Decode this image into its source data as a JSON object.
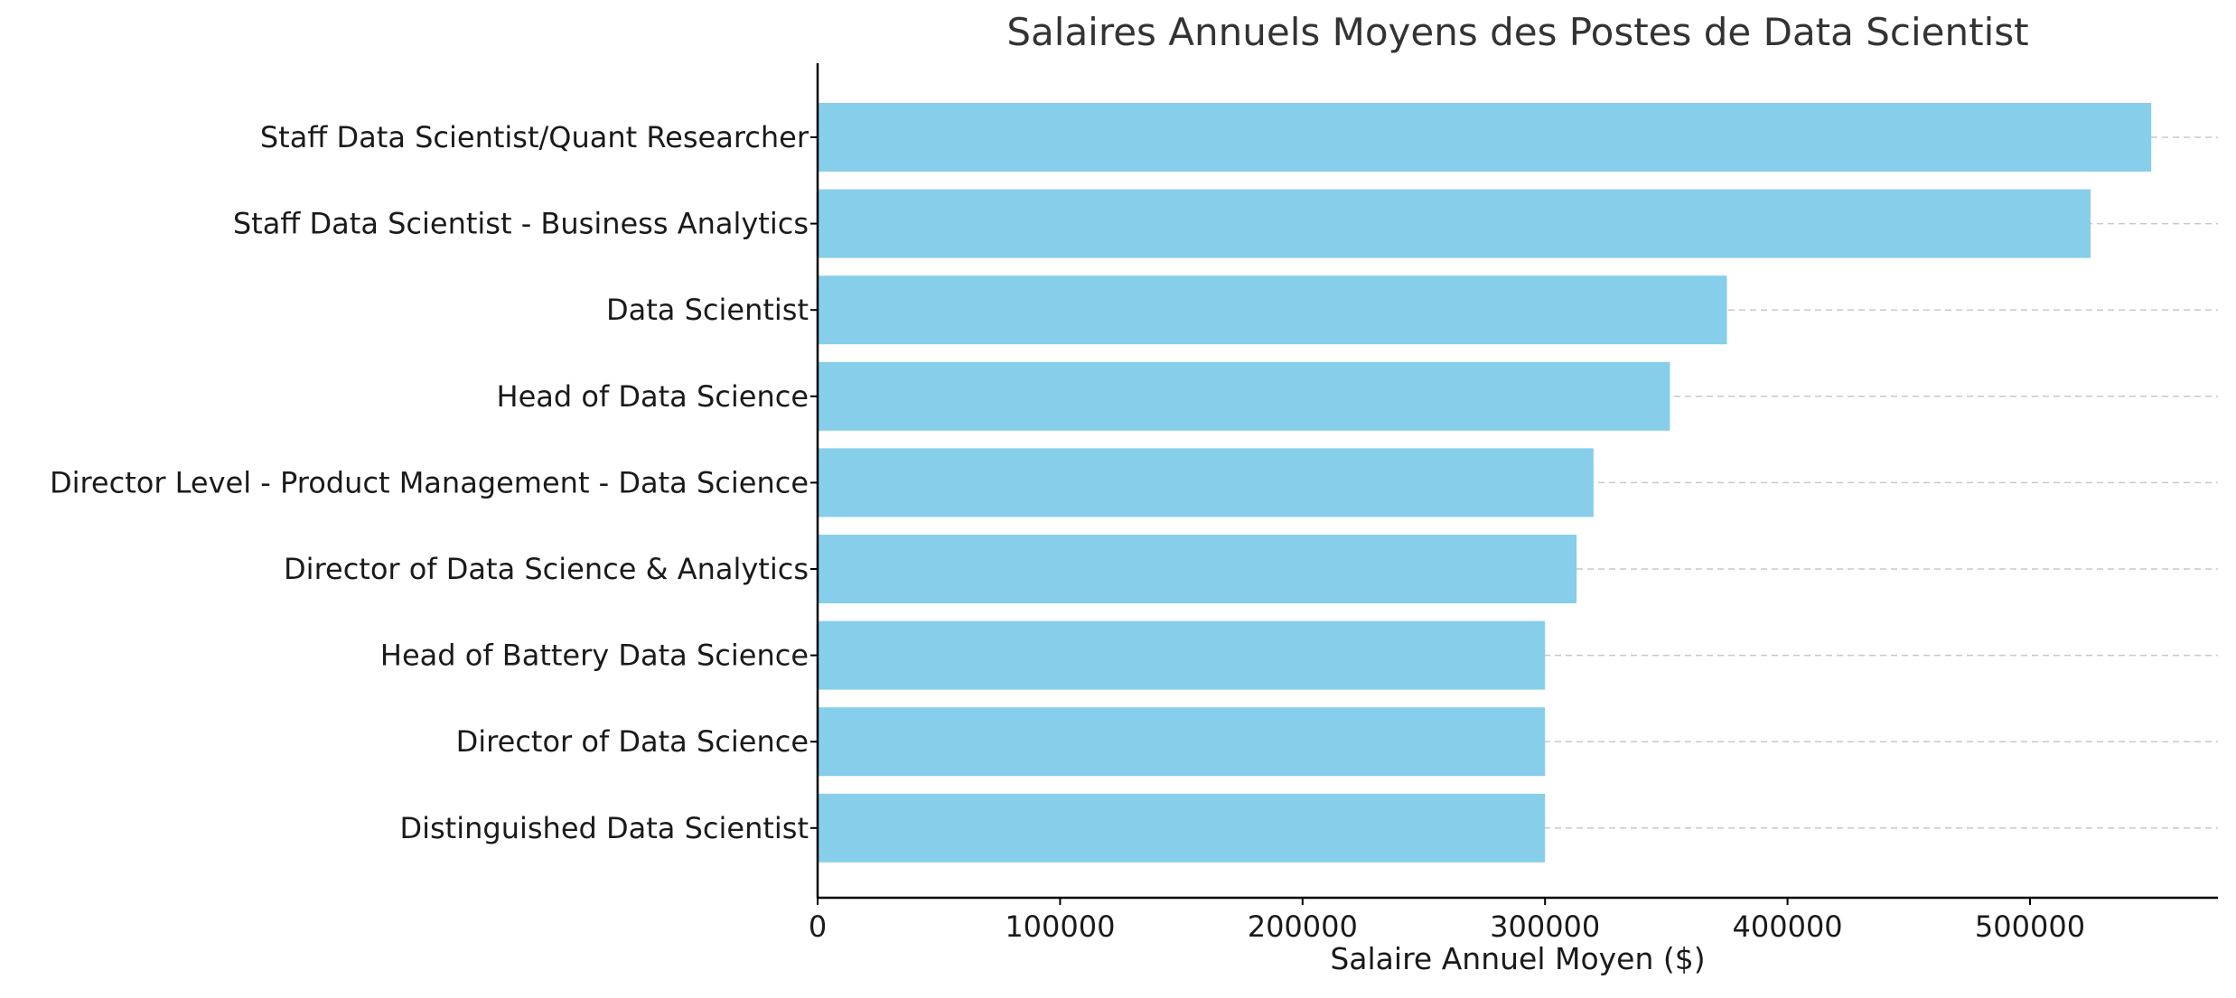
{
  "chart_data": {
    "type": "bar",
    "orientation": "horizontal",
    "title": "Salaires Annuels Moyens des Postes de Data Scientist",
    "xlabel": "Salaire Annuel Moyen ($)",
    "ylabel": "",
    "categories": [
      "Staff Data Scientist/Quant Researcher",
      "Staff Data Scientist - Business Analytics",
      "Data Scientist",
      "Head of Data Science",
      "Director Level - Product Management - Data Science",
      "Director of Data Science & Analytics",
      "Head of Battery Data Science",
      "Director of Data Science",
      "Distinguished Data Scientist"
    ],
    "values": [
      550000,
      525000,
      375000,
      351500,
      320000,
      313000,
      300000,
      300000,
      300000
    ],
    "xticks": [
      0,
      100000,
      200000,
      300000,
      400000,
      500000
    ],
    "xlim": [
      0,
      577500
    ],
    "grid": "x-dashed",
    "colors": {
      "bar": "#87CEEB",
      "grid": "#c8c8c8",
      "axis": "#000000",
      "text": "#1a1a1a",
      "title": "#333333"
    }
  }
}
